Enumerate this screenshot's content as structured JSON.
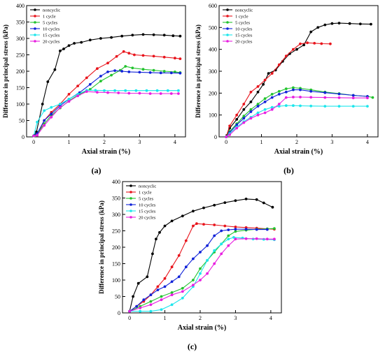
{
  "chart_data": [
    {
      "type": "line",
      "panel_label": "(a)",
      "xlabel": "Axial strain (%)",
      "ylabel": "Difference in principal stress (kPa)",
      "xlim": [
        -0.2,
        4.3
      ],
      "ylim": [
        0,
        400
      ],
      "xticks": [
        0,
        1,
        2,
        3,
        4
      ],
      "yticks": [
        0,
        50,
        100,
        150,
        200,
        250,
        300,
        350,
        400
      ],
      "legend_position": "top-left",
      "series": [
        {
          "name": "noncyclic",
          "color": "#000000",
          "x": [
            0,
            0.08,
            0.25,
            0.4,
            0.6,
            0.75,
            0.85,
            1.0,
            1.15,
            1.35,
            1.6,
            1.9,
            2.2,
            2.5,
            2.8,
            3.1,
            3.4,
            3.7,
            3.95,
            4.15
          ],
          "y": [
            3,
            15,
            100,
            168,
            205,
            262,
            268,
            278,
            285,
            288,
            295,
            300,
            303,
            307,
            310,
            312,
            311,
            310,
            308,
            307
          ]
        },
        {
          "name": "1 cycle",
          "color": "#e8141c",
          "x": [
            0,
            0.1,
            0.3,
            0.5,
            0.75,
            1.0,
            1.25,
            1.5,
            1.8,
            2.1,
            2.35,
            2.55,
            2.7,
            2.85,
            3.1,
            3.4,
            3.7,
            4.0,
            4.15
          ],
          "y": [
            3,
            5,
            50,
            75,
            100,
            130,
            155,
            180,
            208,
            225,
            245,
            260,
            255,
            250,
            248,
            246,
            243,
            240,
            238
          ]
        },
        {
          "name": "5 cycles",
          "color": "#22c32e",
          "x": [
            0,
            0.1,
            0.3,
            0.5,
            0.75,
            1.0,
            1.3,
            1.6,
            1.9,
            2.2,
            2.45,
            2.6,
            2.8,
            3.1,
            3.4,
            3.7,
            4.0,
            4.15
          ],
          "y": [
            3,
            8,
            40,
            65,
            88,
            110,
            130,
            145,
            170,
            188,
            203,
            215,
            210,
            206,
            203,
            200,
            198,
            196
          ]
        },
        {
          "name": "10 cycles",
          "color": "#1022d8",
          "x": [
            0,
            0.1,
            0.3,
            0.5,
            0.75,
            1.0,
            1.3,
            1.6,
            1.9,
            2.1,
            2.3,
            2.5,
            2.7,
            3.0,
            3.3,
            3.6,
            3.9,
            4.15
          ],
          "y": [
            3,
            10,
            50,
            70,
            95,
            115,
            135,
            160,
            185,
            198,
            202,
            200,
            198,
            197,
            196,
            195,
            195,
            194
          ]
        },
        {
          "name": "15 cycles",
          "color": "#1de6ec",
          "x": [
            0,
            0.1,
            0.3,
            0.5,
            0.75,
            1.0,
            1.25,
            1.5,
            1.75,
            2.0,
            2.3,
            2.6,
            2.9,
            3.2,
            3.5,
            3.8,
            4.1
          ],
          "y": [
            3,
            45,
            80,
            90,
            100,
            115,
            130,
            142,
            142,
            141,
            141,
            141,
            141,
            141,
            141,
            141,
            141
          ]
        },
        {
          "name": "20 cycles",
          "color": "#e81ee0",
          "x": [
            0,
            0.1,
            0.3,
            0.5,
            0.75,
            1.0,
            1.25,
            1.5,
            1.8,
            2.1,
            2.4,
            2.7,
            3.0,
            3.3,
            3.6,
            3.9,
            4.1
          ],
          "y": [
            3,
            5,
            35,
            60,
            90,
            108,
            125,
            138,
            136,
            135,
            134,
            133,
            133,
            132,
            132,
            132,
            132
          ]
        }
      ]
    },
    {
      "type": "line",
      "panel_label": "(b)",
      "xlabel": "Axial strain (%)",
      "ylabel": "Difference in principal stress (kPa)",
      "xlim": [
        -0.2,
        4.3
      ],
      "ylim": [
        0,
        600
      ],
      "xticks": [
        0,
        1,
        2,
        3,
        4
      ],
      "yticks": [
        0,
        100,
        200,
        300,
        400,
        500,
        600
      ],
      "legend_position": "top-left",
      "series": [
        {
          "name": "noncyclic",
          "color": "#000000",
          "x": [
            0,
            0.1,
            0.3,
            0.5,
            0.7,
            0.9,
            1.05,
            1.2,
            1.4,
            1.6,
            1.8,
            2.0,
            2.2,
            2.4,
            2.6,
            2.8,
            3.0,
            3.2,
            3.5,
            3.8,
            4.1
          ],
          "y": [
            0,
            40,
            80,
            125,
            160,
            205,
            240,
            290,
            305,
            345,
            380,
            400,
            420,
            480,
            500,
            512,
            518,
            520,
            518,
            516,
            515
          ]
        },
        {
          "name": "1 cycle",
          "color": "#e8141c",
          "x": [
            0,
            0.1,
            0.3,
            0.5,
            0.7,
            0.9,
            1.1,
            1.3,
            1.5,
            1.7,
            1.9,
            2.1,
            2.3,
            2.5,
            2.7,
            2.95
          ],
          "y": [
            0,
            50,
            100,
            150,
            205,
            230,
            260,
            290,
            330,
            370,
            400,
            425,
            430,
            428,
            426,
            425
          ]
        },
        {
          "name": "5 cycles",
          "color": "#22c32e",
          "x": [
            0,
            0.1,
            0.3,
            0.5,
            0.7,
            0.9,
            1.1,
            1.3,
            1.5,
            1.7,
            1.9,
            2.1,
            2.4,
            2.8,
            3.2,
            3.6,
            4.0,
            4.15
          ],
          "y": [
            0,
            25,
            60,
            95,
            125,
            150,
            175,
            195,
            208,
            220,
            225,
            222,
            215,
            205,
            198,
            190,
            185,
            180
          ]
        },
        {
          "name": "10 cycles",
          "color": "#1022d8",
          "x": [
            0,
            0.1,
            0.3,
            0.5,
            0.7,
            0.9,
            1.1,
            1.3,
            1.5,
            1.7,
            1.9,
            2.1,
            2.4,
            2.8,
            3.2,
            3.6,
            4.0
          ],
          "y": [
            0,
            20,
            55,
            85,
            115,
            140,
            160,
            180,
            195,
            205,
            215,
            215,
            208,
            202,
            196,
            190,
            185
          ]
        },
        {
          "name": "15 cycles",
          "color": "#1de6ec",
          "x": [
            0,
            0.1,
            0.3,
            0.5,
            0.7,
            0.9,
            1.1,
            1.3,
            1.5,
            1.7,
            1.9,
            2.1,
            2.4,
            2.8,
            3.2,
            3.6,
            4.0
          ],
          "y": [
            0,
            15,
            45,
            70,
            90,
            110,
            125,
            135,
            140,
            143,
            143,
            142,
            141,
            140,
            140,
            140,
            140
          ]
        },
        {
          "name": "20 cycles",
          "color": "#e81ee0",
          "x": [
            0,
            0.1,
            0.3,
            0.5,
            0.7,
            0.9,
            1.1,
            1.3,
            1.5,
            1.7,
            1.9,
            2.1,
            2.4,
            2.8,
            3.2,
            3.6,
            4.0
          ],
          "y": [
            0,
            10,
            40,
            65,
            85,
            100,
            110,
            125,
            150,
            180,
            182,
            182,
            181,
            180,
            179,
            178,
            178
          ]
        }
      ]
    },
    {
      "type": "line",
      "panel_label": "(c)",
      "xlabel": "Axial strain (%)",
      "ylabel": "Difference in principal stress (kPa)",
      "xlim": [
        -0.2,
        4.3
      ],
      "ylim": [
        0,
        400
      ],
      "xticks": [
        0,
        1,
        2,
        3,
        4
      ],
      "yticks": [
        0,
        50,
        100,
        150,
        200,
        250,
        300,
        350,
        400
      ],
      "legend_position": "top-left",
      "series": [
        {
          "name": "noncyclic",
          "color": "#000000",
          "x": [
            0,
            0.1,
            0.25,
            0.5,
            0.65,
            0.75,
            0.85,
            1.0,
            1.2,
            1.5,
            1.8,
            2.1,
            2.4,
            2.7,
            3.0,
            3.3,
            3.6,
            3.8,
            4.05
          ],
          "y": [
            5,
            50,
            90,
            110,
            180,
            225,
            245,
            265,
            280,
            295,
            310,
            320,
            328,
            336,
            342,
            347,
            345,
            335,
            322
          ]
        },
        {
          "name": "1 cycle",
          "color": "#e8141c",
          "x": [
            0,
            0.2,
            0.4,
            0.6,
            0.8,
            1.0,
            1.2,
            1.4,
            1.6,
            1.8,
            1.9,
            2.1,
            2.4,
            2.7,
            3.0,
            3.3,
            3.6,
            3.9,
            4.1
          ],
          "y": [
            5,
            20,
            35,
            55,
            80,
            105,
            140,
            175,
            220,
            265,
            272,
            270,
            268,
            265,
            262,
            260,
            258,
            256,
            255
          ]
        },
        {
          "name": "5 cycles",
          "color": "#22c32e",
          "x": [
            0,
            0.3,
            0.6,
            0.9,
            1.2,
            1.5,
            1.8,
            2.0,
            2.2,
            2.4,
            2.6,
            2.8,
            3.0,
            3.3,
            3.6,
            3.9,
            4.1
          ],
          "y": [
            5,
            20,
            35,
            50,
            62,
            75,
            100,
            135,
            160,
            185,
            210,
            235,
            248,
            252,
            255,
            256,
            257
          ]
        },
        {
          "name": "10 cycles",
          "color": "#1022d8",
          "x": [
            0,
            0.2,
            0.4,
            0.6,
            0.8,
            1.0,
            1.2,
            1.4,
            1.6,
            1.8,
            2.0,
            2.2,
            2.4,
            2.6,
            2.8,
            3.0,
            3.3,
            3.6,
            3.9
          ],
          "y": [
            5,
            20,
            40,
            55,
            70,
            80,
            95,
            110,
            140,
            165,
            185,
            205,
            235,
            250,
            253,
            255,
            255,
            254,
            254
          ]
        },
        {
          "name": "15 cycles",
          "color": "#1de6ec",
          "x": [
            0,
            0.3,
            0.6,
            0.9,
            1.2,
            1.5,
            1.8,
            2.0,
            2.2,
            2.4,
            2.6,
            2.8,
            2.95,
            3.2,
            3.5,
            3.8,
            4.1
          ],
          "y": [
            5,
            5,
            5,
            10,
            25,
            45,
            80,
            120,
            160,
            190,
            210,
            225,
            230,
            228,
            225,
            224,
            223
          ]
        },
        {
          "name": "20 cycles",
          "color": "#e81ee0",
          "x": [
            0,
            0.3,
            0.6,
            0.9,
            1.2,
            1.5,
            1.8,
            2.0,
            2.2,
            2.4,
            2.6,
            2.8,
            3.0,
            3.3,
            3.6,
            3.9,
            4.1
          ],
          "y": [
            5,
            15,
            25,
            40,
            55,
            65,
            85,
            100,
            120,
            150,
            180,
            205,
            225,
            226,
            226,
            225,
            225
          ]
        }
      ]
    }
  ]
}
